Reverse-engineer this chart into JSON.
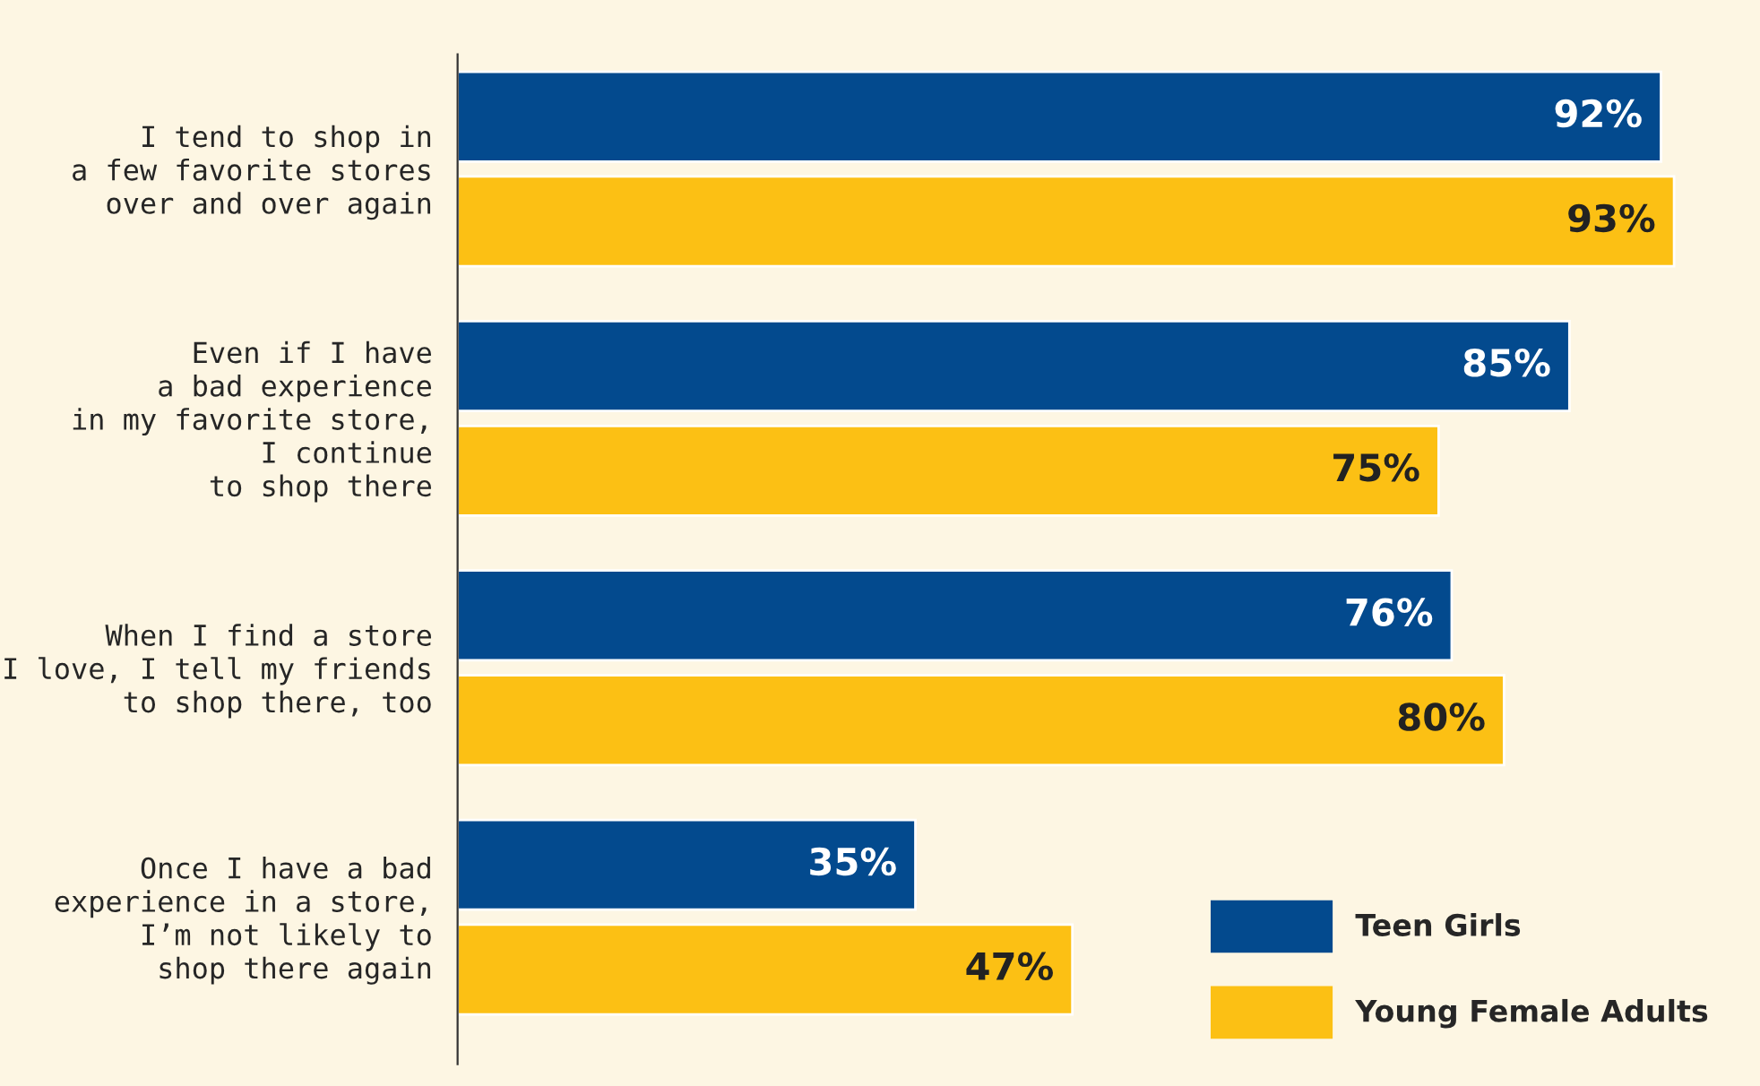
{
  "chart_data": {
    "type": "bar",
    "orientation": "horizontal",
    "legend": "bottom right",
    "grid": false,
    "categories": [
      "I tend to shop in\na few favorite stores\nover and over again",
      "Even if I have\na bad experience\nin my favorite store,\nI continue\nto shop there",
      "When I find a store\nI love, I tell my friends\nto shop there, too",
      "Once I have a bad\nexperience in a store,\nI’m not likely to\nshop there again"
    ],
    "series": [
      {
        "name": "Teen Girls",
        "color": "#034a8e",
        "values": [
          92,
          85,
          76,
          35
        ],
        "value_labels": [
          "92%",
          "85%",
          "76%",
          "35%"
        ]
      },
      {
        "name": "Young Female Adults",
        "color": "#fcc014",
        "values": [
          93,
          75,
          80,
          47
        ],
        "value_labels": [
          "93%",
          "75%",
          "80%",
          "47%"
        ]
      }
    ]
  }
}
